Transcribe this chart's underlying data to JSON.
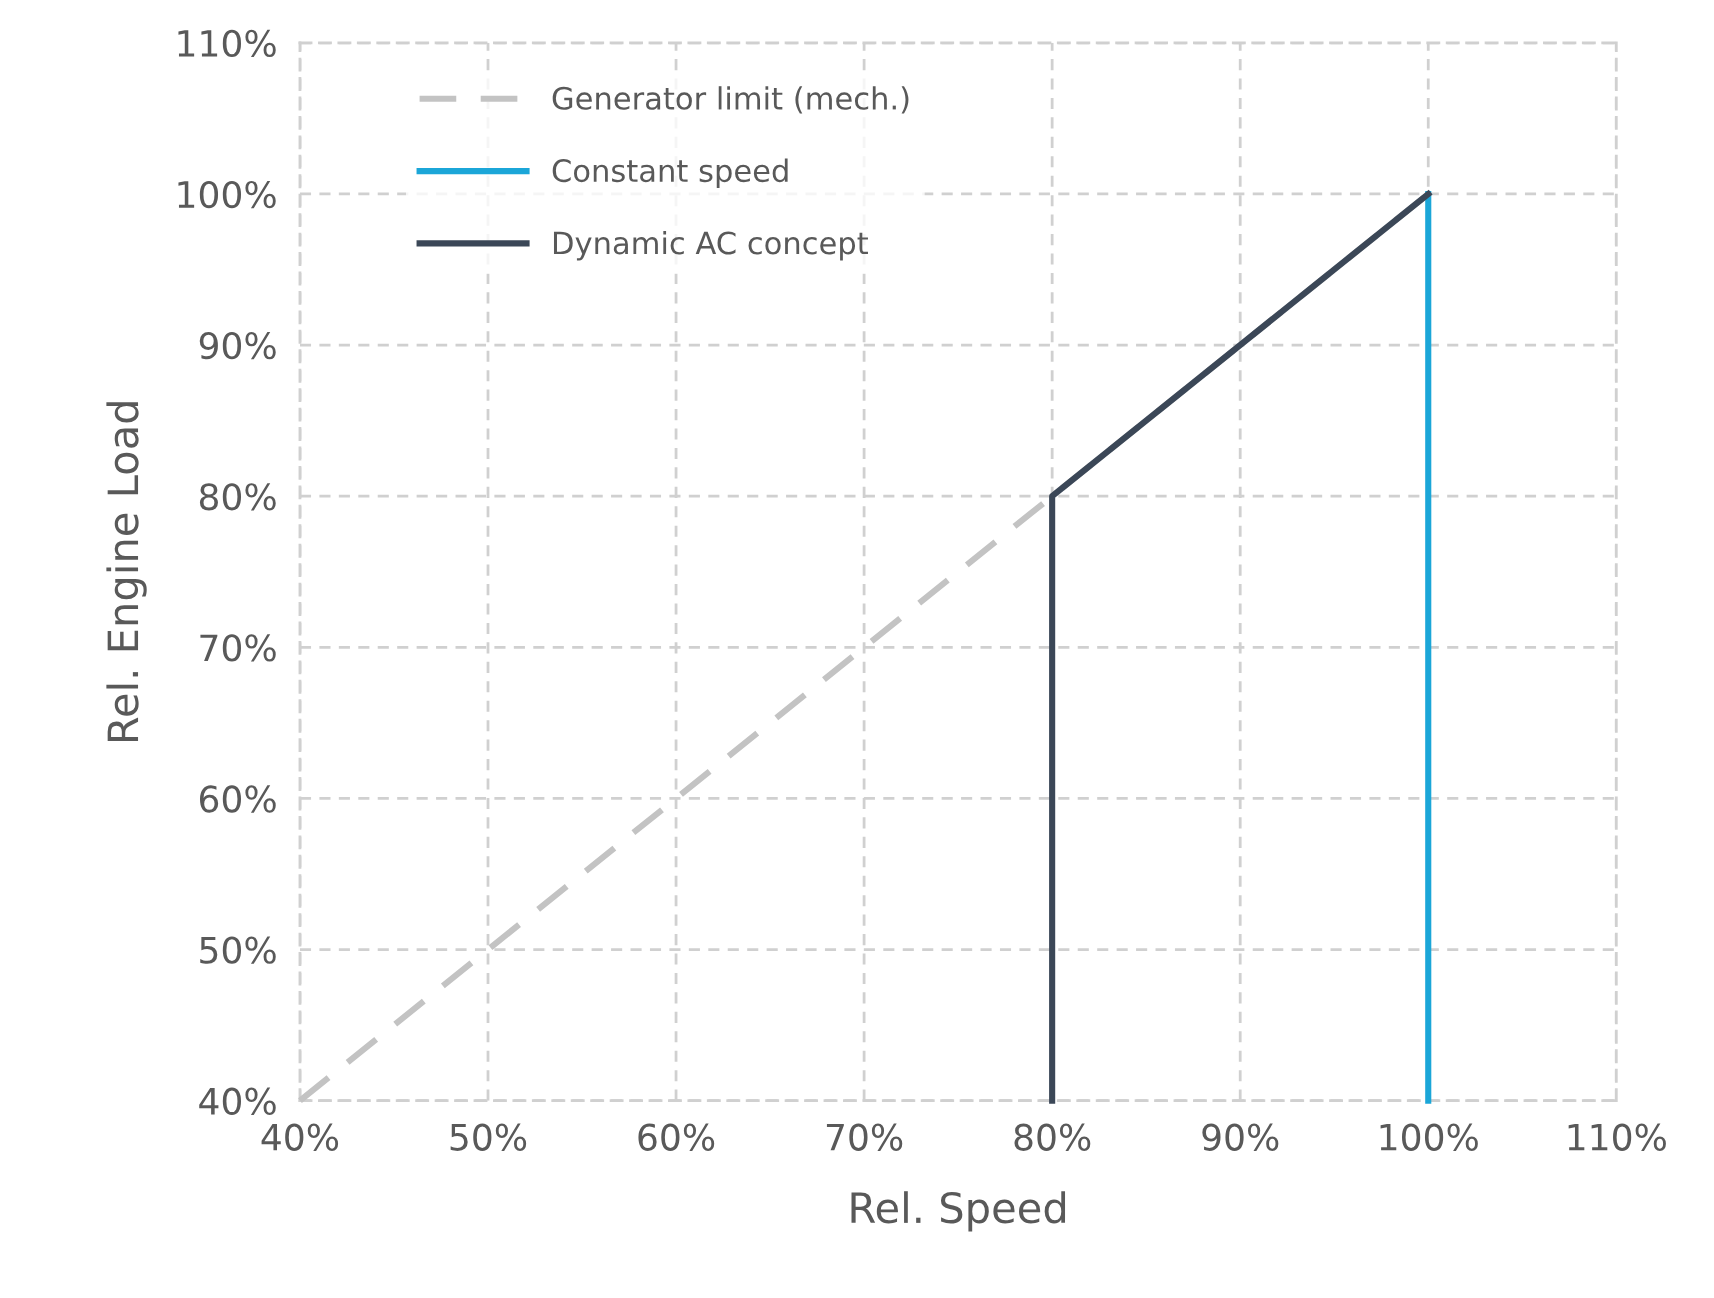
{
  "chart_data": {
    "type": "line",
    "xlabel": "Rel. Speed",
    "ylabel": "Rel. Engine Load",
    "xlim": [
      40,
      110
    ],
    "ylim": [
      40,
      110
    ],
    "xticks": [
      {
        "value": 40,
        "label": "40%"
      },
      {
        "value": 50,
        "label": "50%"
      },
      {
        "value": 60,
        "label": "60%"
      },
      {
        "value": 70,
        "label": "70%"
      },
      {
        "value": 80,
        "label": "80%"
      },
      {
        "value": 90,
        "label": "90%"
      },
      {
        "value": 100,
        "label": "100%"
      },
      {
        "value": 110,
        "label": "110%"
      }
    ],
    "yticks": [
      {
        "value": 40,
        "label": "40%"
      },
      {
        "value": 50,
        "label": "50%"
      },
      {
        "value": 60,
        "label": "60%"
      },
      {
        "value": 70,
        "label": "70%"
      },
      {
        "value": 80,
        "label": "80%"
      },
      {
        "value": 90,
        "label": "90%"
      },
      {
        "value": 100,
        "label": "100%"
      },
      {
        "value": 110,
        "label": "110%"
      }
    ],
    "grid": true,
    "legend": "top left",
    "marker": "none",
    "series": [
      {
        "name": "Generator limit (mech.)",
        "color": "#c3c3c3",
        "line_style": "dashed",
        "x": [
          40,
          100
        ],
        "values": [
          40,
          100
        ]
      },
      {
        "name": "Constant speed",
        "color": "#1ba6d8",
        "line_style": "solid",
        "x": [
          100,
          100
        ],
        "values": [
          40,
          100
        ]
      },
      {
        "name": "Dynamic AC concept",
        "color": "#3b4757",
        "line_style": "solid",
        "x": [
          80,
          80,
          100
        ],
        "values": [
          40,
          80,
          100
        ]
      }
    ]
  }
}
